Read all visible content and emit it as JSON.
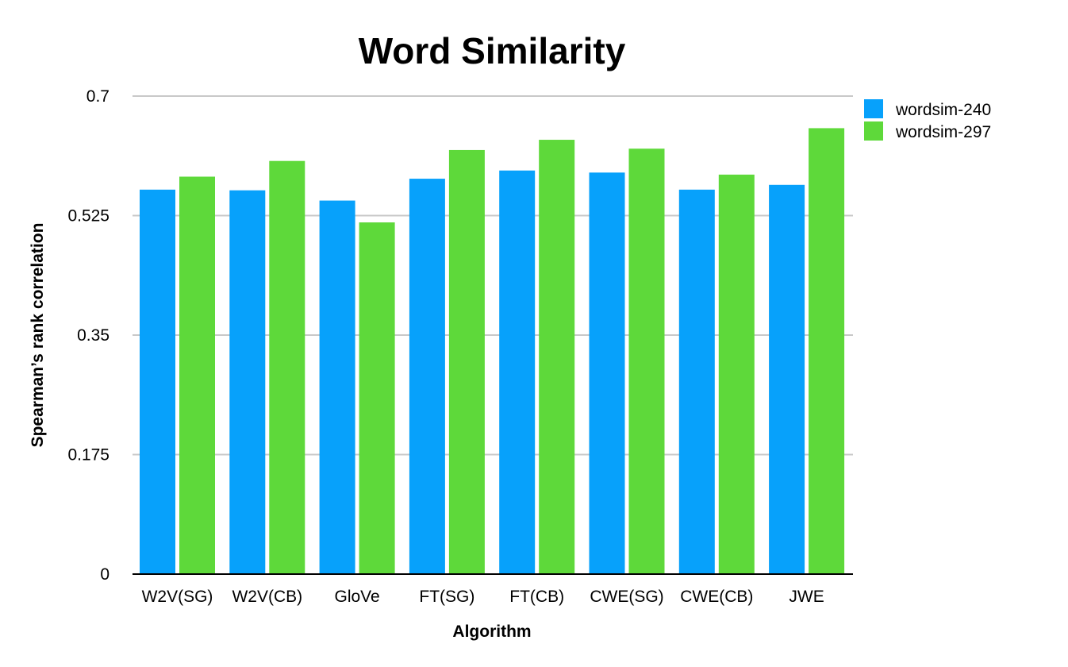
{
  "chart_data": {
    "type": "bar",
    "title": "Word Similarity",
    "xlabel": "Algorithm",
    "ylabel": "Spearman’s rank correlation",
    "categories": [
      "W2V(SG)",
      "W2V(CB)",
      "GloVe",
      "FT(SG)",
      "FT(CB)",
      "CWE(SG)",
      "CWE(CB)",
      "JWE"
    ],
    "series": [
      {
        "name": "wordsim-240",
        "color": "#07a1fb",
        "values": [
          0.563,
          0.562,
          0.547,
          0.579,
          0.591,
          0.588,
          0.563,
          0.57
        ]
      },
      {
        "name": "wordsim-297",
        "color": "#5ed93a",
        "values": [
          0.582,
          0.605,
          0.515,
          0.621,
          0.636,
          0.623,
          0.585,
          0.653
        ]
      }
    ],
    "yticks": [
      0,
      0.175,
      0.35,
      0.525,
      0.7
    ],
    "ytick_labels": [
      "0",
      "0.175",
      "0.35",
      "0.525",
      "0.7"
    ],
    "ylim": [
      0,
      0.7
    ],
    "grid": true,
    "legend_position": "top-right"
  }
}
